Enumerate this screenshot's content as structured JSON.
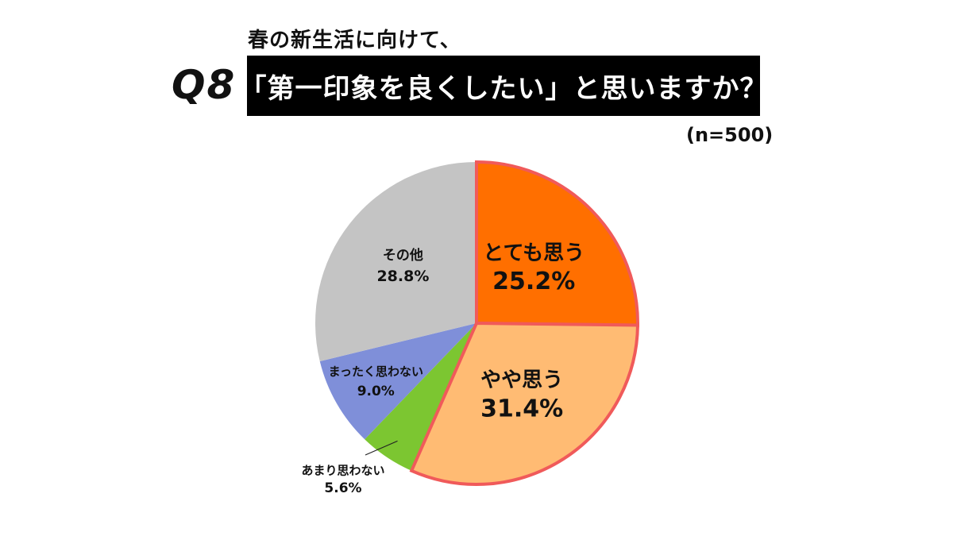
{
  "header": {
    "subtitle": "春の新生活に向けて、",
    "question_no": "Q8",
    "question": "「第一印象を良くしたい」と思いますか？",
    "sample": "(n=500)"
  },
  "chart_data": {
    "type": "pie",
    "title": "「第一印象を良くしたい」と思いますか？",
    "unit": "%",
    "start_angle_deg": 0,
    "direction": "clockwise",
    "highlight_stroke": "#f05a5a",
    "slices": [
      {
        "label": "とても思う",
        "value": 25.2,
        "value_text": "25.2%",
        "color": "#ff6f00",
        "highlight": true
      },
      {
        "label": "やや思う",
        "value": 31.4,
        "value_text": "31.4%",
        "color": "#ffbb73",
        "highlight": true
      },
      {
        "label": "あまり思わない",
        "value": 5.6,
        "value_text": "5.6%",
        "color": "#7cc631",
        "highlight": false
      },
      {
        "label": "まったく思わない",
        "value": 9.0,
        "value_text": "9.0%",
        "color": "#7f8fd9",
        "highlight": false
      },
      {
        "label": "その他",
        "value": 28.8,
        "value_text": "28.8%",
        "color": "#c4c4c4",
        "highlight": false
      }
    ]
  }
}
